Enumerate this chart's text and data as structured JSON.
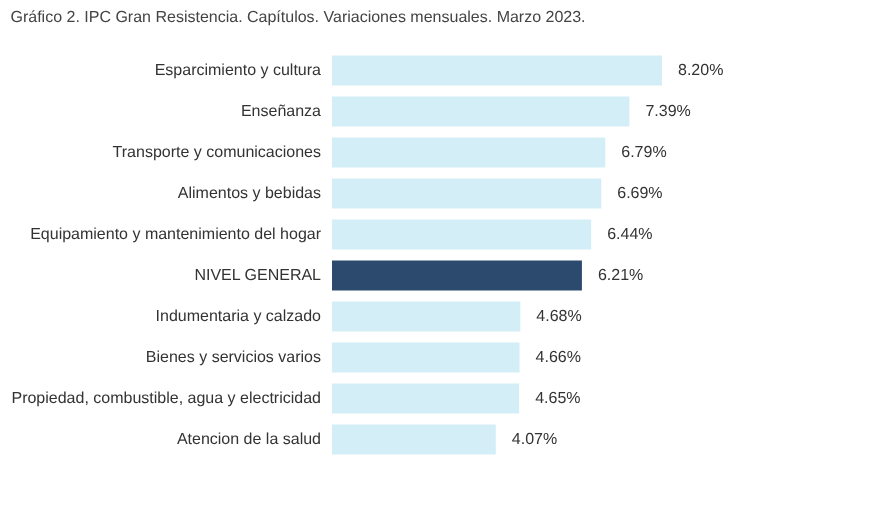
{
  "chart_data": {
    "type": "bar",
    "orientation": "horizontal",
    "title": "Gráfico 2. IPC Gran Resistencia. Capítulos. Variaciones mensuales. Marzo 2023.",
    "categories": [
      "Esparcimiento y cultura",
      "Enseñanza",
      "Transporte y comunicaciones",
      "Alimentos y bebidas",
      "Equipamiento y mantenimiento del hogar",
      "NIVEL GENERAL",
      "Indumentaria y calzado",
      "Bienes y servicios varios",
      "Propiedad, combustible, agua y electricidad",
      "Atencion de la salud"
    ],
    "values": [
      8.2,
      7.39,
      6.79,
      6.69,
      6.44,
      6.21,
      4.68,
      4.66,
      4.65,
      4.07
    ],
    "value_labels": [
      "8.20%",
      "7.39%",
      "6.79%",
      "6.69%",
      "6.44%",
      "6.21%",
      "4.68%",
      "4.66%",
      "4.65%",
      "4.07%"
    ],
    "colors": [
      "#d3eef6",
      "#d3eef6",
      "#d3eef6",
      "#d3eef6",
      "#d3eef6",
      "#2c4a6e",
      "#d3eef6",
      "#d3eef6",
      "#d3eef6",
      "#d3eef6"
    ],
    "grid": false
  }
}
